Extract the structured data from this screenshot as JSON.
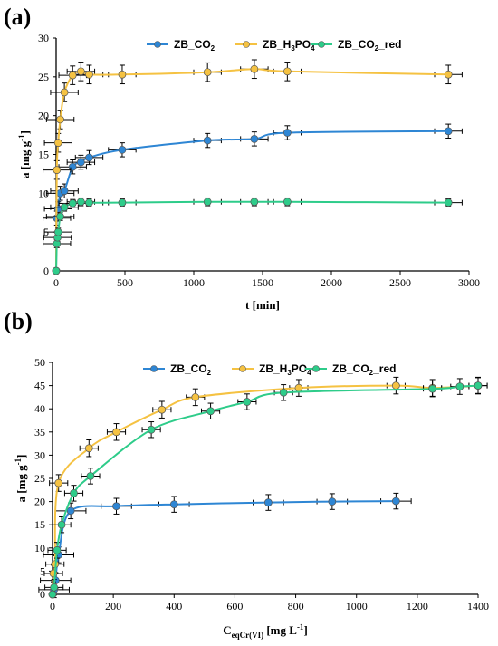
{
  "chart_data": [
    {
      "panel": "(a)",
      "type": "line",
      "xlabel": "t [min]",
      "ylabel_main": "a [mg g",
      "ylabel_sup": "-1",
      "ylabel_end": "]",
      "xlim": [
        0,
        3000
      ],
      "ylim": [
        0,
        30
      ],
      "xticks": [
        0,
        500,
        1000,
        1500,
        2000,
        2500,
        3000
      ],
      "yticks": [
        0,
        5,
        10,
        15,
        20,
        25,
        30
      ],
      "grid": false,
      "legend_position": "top",
      "series": [
        {
          "name": "ZB_CO₂",
          "legend_main": "ZB_CO",
          "legend_sub": "2",
          "legend_end": "",
          "color": "#2e86d4",
          "x": [
            0,
            5,
            15,
            30,
            60,
            120,
            180,
            240,
            480,
            1100,
            1440,
            1680,
            2850
          ],
          "y": [
            0,
            6.8,
            8.0,
            10.0,
            10.3,
            13.4,
            14.0,
            14.6,
            15.6,
            16.8,
            17.0,
            17.8,
            18.0
          ],
          "xerr": 100,
          "yerr": 0.9
        },
        {
          "name": "ZB_H₃PO₄",
          "legend_main": "ZB_H",
          "legend_sub": "3",
          "legend_end": "PO",
          "legend_sub2": "4",
          "color": "#f5c242",
          "x": [
            0,
            5,
            15,
            30,
            60,
            120,
            180,
            240,
            480,
            1100,
            1440,
            1680,
            2850
          ],
          "y": [
            0,
            13.0,
            16.5,
            19.5,
            23.0,
            25.2,
            25.7,
            25.3,
            25.3,
            25.6,
            26.0,
            25.7,
            25.3
          ],
          "xerr": 100,
          "yerr": 1.2
        },
        {
          "name": "ZB_CO₂_red",
          "legend_main": "ZB_CO",
          "legend_sub": "2",
          "legend_end": "_red",
          "color": "#2ecc8a",
          "x": [
            0,
            5,
            10,
            15,
            30,
            60,
            120,
            180,
            240,
            480,
            1100,
            1440,
            1680,
            2850
          ],
          "y": [
            0,
            3.5,
            4.3,
            5.0,
            7.0,
            8.2,
            8.7,
            8.9,
            8.8,
            8.8,
            8.9,
            8.9,
            8.9,
            8.8
          ],
          "xerr": 100,
          "yerr": 0.5
        }
      ]
    },
    {
      "panel": "(b)",
      "type": "line",
      "xlabel_main": "C",
      "xlabel_sub": "eqCr(VI)",
      "xlabel_end": " [mg L",
      "xlabel_sup": "-1",
      "xlabel_close": "]",
      "ylabel_main": "a [mg g",
      "ylabel_sup": "-1",
      "ylabel_end": "]",
      "xlim": [
        0,
        1400
      ],
      "ylim": [
        0,
        50
      ],
      "xticks": [
        0,
        200,
        400,
        600,
        800,
        1000,
        1200,
        1400
      ],
      "yticks": [
        0,
        5,
        10,
        15,
        20,
        25,
        30,
        35,
        40,
        45,
        50
      ],
      "grid": false,
      "legend_position": "top",
      "series": [
        {
          "name": "ZB_CO₂",
          "legend_main": "ZB_CO",
          "legend_sub": "2",
          "legend_end": "",
          "color": "#2e86d4",
          "x": [
            0,
            5,
            10,
            20,
            60,
            210,
            400,
            710,
            920,
            1130
          ],
          "y": [
            0,
            1.0,
            3.0,
            8.5,
            18.0,
            19.0,
            19.4,
            19.8,
            20.0,
            20.1
          ],
          "xerr": 50,
          "yerr": 1.7
        },
        {
          "name": "ZB_H₃PO₄",
          "legend_main": "ZB_H",
          "legend_sub": "3",
          "legend_end": "PO",
          "legend_sub2": "4",
          "color": "#f5c242",
          "x": [
            0,
            3,
            8,
            20,
            120,
            210,
            360,
            470,
            810,
            1130,
            1250,
            1400
          ],
          "y": [
            0,
            4.5,
            6.5,
            24.0,
            31.5,
            35.0,
            39.8,
            42.5,
            44.5,
            45.0,
            44.5,
            45.0
          ],
          "xerr": 30,
          "yerr": 1.8
        },
        {
          "name": "ZB_CO₂_red",
          "legend_main": "ZB_CO",
          "legend_sub": "2",
          "legend_end": "_red",
          "color": "#2ecc8a",
          "x": [
            0,
            5,
            15,
            30,
            70,
            125,
            325,
            520,
            640,
            760,
            1250,
            1340,
            1400
          ],
          "y": [
            0,
            1.5,
            9.5,
            15.0,
            21.8,
            25.5,
            35.5,
            39.5,
            41.5,
            43.5,
            44.3,
            44.8,
            45.0
          ],
          "xerr": 30,
          "yerr": 1.7
        }
      ]
    }
  ]
}
